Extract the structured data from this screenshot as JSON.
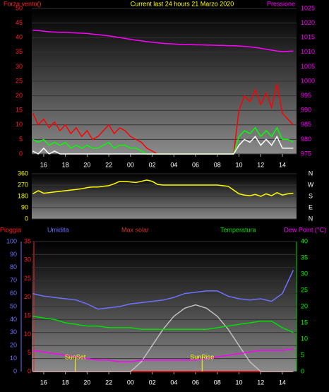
{
  "chart_data": [
    {
      "type": "line",
      "title": "Current last 24 hours 21 Marzo 2020",
      "ylabel": "Forza vento()",
      "y2label": "Pressione",
      "x": [
        15,
        15.5,
        16,
        16.5,
        17,
        17.5,
        18,
        18.5,
        19,
        19.5,
        20,
        20.5,
        21,
        21.5,
        22,
        22.5,
        23,
        23.5,
        24,
        24.5,
        25,
        25.5,
        26,
        26.5,
        27,
        27.5,
        28,
        28.5,
        29,
        29.5,
        30,
        30.5,
        31,
        31.5,
        32,
        32.5,
        33,
        33.5,
        34,
        34.5,
        35,
        35.5,
        36,
        36.5,
        37,
        37.5,
        38,
        38.5,
        39
      ],
      "xlim": [
        14.9,
        39.3
      ],
      "xticks": [
        16,
        18,
        20,
        22,
        {
          "value": 24,
          "label": "00"
        },
        {
          "value": 26,
          "label": "02"
        },
        {
          "value": 28,
          "label": "04"
        },
        {
          "value": 30,
          "label": "06"
        },
        {
          "value": 32,
          "label": "08"
        },
        {
          "value": 34,
          "label": "10"
        },
        {
          "value": 36,
          "label": "12"
        },
        {
          "value": 38,
          "label": "14"
        }
      ],
      "ylim": [
        0,
        50
      ],
      "yticks": [
        0,
        5,
        10,
        15,
        20,
        25,
        30,
        35,
        40,
        45,
        50
      ],
      "ytick_color": "#ff2020",
      "y2lim": [
        975,
        1025
      ],
      "y2ticks": [
        975,
        980,
        985,
        990,
        995,
        1000,
        1005,
        1010,
        1015,
        1020,
        1025
      ],
      "y2tick_color": "#ff00ff",
      "series": [
        {
          "color": "#ff0000",
          "values": [
            14,
            10,
            12,
            9,
            11,
            8,
            10,
            7,
            9,
            6,
            8,
            5,
            6,
            8,
            10,
            7,
            9,
            8,
            6,
            5,
            4,
            2,
            1,
            0,
            0,
            0,
            0,
            0,
            0,
            0,
            0,
            0,
            0,
            0,
            0,
            0,
            0,
            0,
            15,
            20,
            18,
            22,
            17,
            21,
            16,
            24,
            14,
            12,
            10
          ]
        },
        {
          "color": "#00ff00",
          "values": [
            5,
            4,
            5,
            3,
            4,
            3,
            4,
            2,
            3,
            2,
            3,
            2,
            2,
            3,
            4,
            2,
            3,
            3,
            2,
            2,
            1,
            0,
            0,
            0,
            0,
            0,
            0,
            0,
            0,
            0,
            0,
            0,
            0,
            0,
            0,
            0,
            0,
            0,
            6,
            8,
            7,
            9,
            6,
            8,
            6,
            9,
            5,
            5,
            4
          ]
        },
        {
          "color": "#ffffff",
          "values": [
            1,
            0,
            2,
            0,
            1,
            0,
            0,
            0,
            0,
            0,
            0,
            0,
            0,
            0,
            0,
            0,
            0,
            0,
            0,
            0,
            0,
            0,
            0,
            0,
            0,
            0,
            0,
            0,
            0,
            0,
            0,
            0,
            0,
            0,
            0,
            0,
            0,
            0,
            3,
            5,
            4,
            6,
            3,
            5,
            3,
            6,
            2,
            2,
            2
          ]
        },
        {
          "color": "#ff00ff",
          "axis": "y2",
          "values": [
            1017.5,
            1017.4,
            1017.2,
            1017.0,
            1016.9,
            1016.8,
            1016.8,
            1016.7,
            1016.6,
            1016.5,
            1016.4,
            1016.2,
            1016.0,
            1015.8,
            1015.6,
            1015.3,
            1015.0,
            1014.7,
            1014.4,
            1014.1,
            1013.9,
            1013.6,
            1013.4,
            1013.2,
            1013.0,
            1012.9,
            1012.8,
            1012.7,
            1012.6,
            1012.6,
            1012.5,
            1012.5,
            1012.4,
            1012.4,
            1012.3,
            1012.3,
            1012.2,
            1012.2,
            1012.1,
            1012.0,
            1011.8,
            1011.6,
            1011.3,
            1011.0,
            1010.7,
            1010.4,
            1010.2,
            1010.3,
            1010.4
          ]
        }
      ]
    },
    {
      "type": "line",
      "compass": [
        "N",
        "W",
        "S",
        "E",
        "N"
      ],
      "x": [
        15,
        15.5,
        16,
        16.5,
        17,
        17.5,
        18,
        18.5,
        19,
        19.5,
        20,
        20.5,
        21,
        21.5,
        22,
        22.5,
        23,
        23.5,
        24,
        24.5,
        25,
        25.5,
        26,
        26.5,
        27,
        27.5,
        28,
        28.5,
        29,
        29.5,
        30,
        30.5,
        31,
        31.5,
        32,
        32.5,
        33,
        33.5,
        34,
        34.5,
        35,
        35.5,
        36,
        36.5,
        37,
        37.5,
        38,
        38.5,
        39
      ],
      "xlim": [
        14.9,
        39.3
      ],
      "ylim": [
        0,
        360
      ],
      "yticks": [
        0,
        90,
        180,
        270,
        360
      ],
      "ytick_color": "#ffff00",
      "series": [
        {
          "color": "#ffff00",
          "values": [
            200,
            225,
            205,
            210,
            215,
            220,
            225,
            230,
            235,
            240,
            250,
            255,
            255,
            260,
            265,
            280,
            300,
            300,
            295,
            290,
            300,
            310,
            300,
            275,
            270,
            270,
            270,
            270,
            270,
            270,
            270,
            270,
            270,
            270,
            270,
            265,
            260,
            230,
            200,
            190,
            185,
            195,
            180,
            200,
            185,
            210,
            190,
            200,
            205
          ]
        }
      ]
    },
    {
      "type": "line",
      "x": [
        15,
        16,
        17,
        18,
        19,
        20,
        21,
        22,
        23,
        24,
        25,
        26,
        27,
        28,
        29,
        30,
        31,
        32,
        33,
        34,
        35,
        36,
        37,
        38,
        39
      ],
      "xlim": [
        14.9,
        39.3
      ],
      "xticks": [
        16,
        18,
        20,
        22,
        {
          "value": 24,
          "label": "00"
        },
        {
          "value": 26,
          "label": "02"
        },
        {
          "value": 28,
          "label": "04"
        },
        {
          "value": 30,
          "label": "06"
        },
        {
          "value": 32,
          "label": "08"
        },
        {
          "value": 34,
          "label": "10"
        },
        {
          "value": 36,
          "label": "12"
        },
        {
          "value": 38,
          "label": "14"
        }
      ],
      "ylim": [
        0,
        100
      ],
      "yticks": [
        0,
        10,
        20,
        30,
        40,
        50,
        60,
        70,
        80,
        90,
        100
      ],
      "ytick_color": "#7070ff",
      "y3lim": [
        0,
        35
      ],
      "y3ticks": [
        0,
        5,
        10,
        15,
        20,
        25,
        30,
        35
      ],
      "y3tick_color": "#ff2020",
      "y2lim": [
        0,
        40
      ],
      "y2ticks": [
        0,
        5,
        10,
        15,
        20,
        25,
        30,
        35,
        40
      ],
      "y2tick_color": "#00ff00",
      "series": [
        {
          "name": "Pioggia",
          "color": "#ff0000",
          "axis": "y3",
          "values": [
            0,
            0,
            0,
            0,
            0,
            0,
            0,
            0,
            0,
            0,
            0,
            0,
            0,
            0,
            0,
            0,
            0,
            0,
            0,
            0,
            0,
            0,
            0,
            0,
            0
          ]
        },
        {
          "name": "Umidita",
          "color": "#7070ff",
          "values": [
            60,
            58,
            57,
            56,
            55,
            52,
            48,
            49,
            50,
            52,
            53,
            54,
            55,
            57,
            60,
            61,
            62,
            62,
            58,
            56,
            55,
            56,
            54,
            60,
            78
          ]
        },
        {
          "name": "Max solar",
          "color": "#c0c0c0",
          "axis": "y2",
          "values": [
            0,
            0,
            0,
            0,
            0,
            0,
            0,
            0,
            0,
            0,
            3,
            8,
            13,
            17,
            19.5,
            20.5,
            19.5,
            17,
            13,
            8,
            3,
            0,
            0,
            0,
            0
          ]
        },
        {
          "name": "Temperatura",
          "color": "#00dd00",
          "axis": "y2",
          "values": [
            17,
            16.5,
            16,
            15,
            14.5,
            14,
            14,
            13.5,
            13.5,
            13.5,
            13,
            13,
            13,
            13,
            13,
            13,
            13,
            13.5,
            14,
            14.5,
            15,
            15.5,
            15.5,
            13.5,
            12
          ]
        },
        {
          "name": "Dew Point (°C)",
          "color": "#ff00ff",
          "axis": "y2",
          "values": [
            6.5,
            6,
            5.5,
            5,
            4.5,
            4,
            3.5,
            3.5,
            3,
            3,
            3.5,
            3.5,
            3.5,
            3.5,
            3.5,
            3.5,
            4,
            4.5,
            5,
            5.5,
            6,
            6.5,
            6.5,
            6.5,
            7
          ]
        }
      ],
      "annotations": [
        {
          "text": "SunSet",
          "x": 18.9
        },
        {
          "text": "SunRise",
          "x": 30.6
        }
      ]
    }
  ]
}
